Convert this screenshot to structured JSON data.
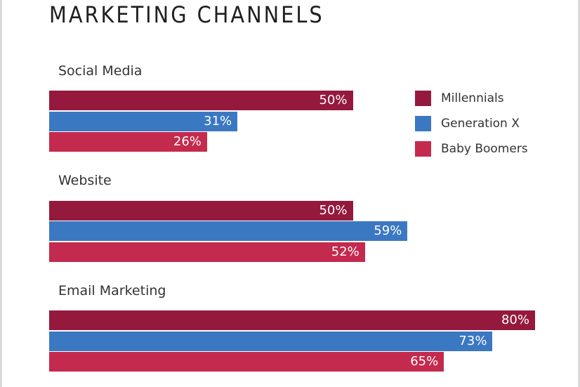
{
  "chart_data": {
    "type": "bar",
    "orientation": "horizontal",
    "title": "MARKETING CHANNELS",
    "categories": [
      "Social Media",
      "Website",
      "Email Marketing"
    ],
    "series": [
      {
        "name": "Millennials",
        "color": "#95193d",
        "values": [
          50,
          50,
          80
        ],
        "labels": [
          "50%",
          "50%",
          "80%"
        ]
      },
      {
        "name": "Generation X",
        "color": "#3b78c2",
        "values": [
          31,
          59,
          73
        ],
        "labels": [
          "31%",
          "59%",
          "73%"
        ]
      },
      {
        "name": "Baby Boomers",
        "color": "#c42a4e",
        "values": [
          26,
          52,
          65
        ],
        "labels": [
          "26%",
          "52%",
          "65%"
        ]
      }
    ],
    "xlim": [
      0,
      80
    ],
    "legend_position": "top-right"
  }
}
